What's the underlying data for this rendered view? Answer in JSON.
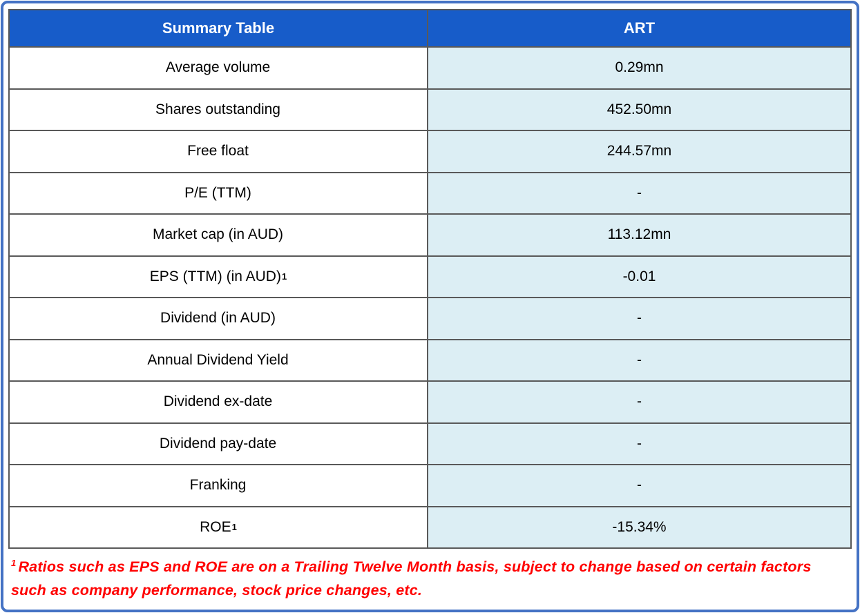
{
  "colors": {
    "header_bg": "#175CC9",
    "header_text": "#FFFFFF",
    "label_cell_bg": "#FFFFFF",
    "value_cell_bg": "#DCEEF4",
    "cell_border": "#595959",
    "frame_border": "#4472C4",
    "footnote_text": "#FF0000",
    "body_text": "#000000"
  },
  "table": {
    "header": {
      "label_col": "Summary Table",
      "value_col": "ART"
    },
    "rows": [
      {
        "label": "Average volume",
        "sup": "",
        "value": "0.29mn"
      },
      {
        "label": "Shares outstanding",
        "sup": "",
        "value": "452.50mn"
      },
      {
        "label": "Free float",
        "sup": "",
        "value": "244.57mn"
      },
      {
        "label": "P/E (TTM)",
        "sup": "",
        "value": "-"
      },
      {
        "label": "Market cap (in AUD)",
        "sup": "",
        "value": "113.12mn"
      },
      {
        "label": "EPS (TTM) (in AUD)",
        "sup": "1",
        "value": "-0.01"
      },
      {
        "label": "Dividend (in AUD)",
        "sup": "",
        "value": "-"
      },
      {
        "label": "Annual Dividend Yield",
        "sup": "",
        "value": "-"
      },
      {
        "label": "Dividend ex-date",
        "sup": "",
        "value": "-"
      },
      {
        "label": "Dividend pay-date",
        "sup": "",
        "value": "-"
      },
      {
        "label": "Franking",
        "sup": "",
        "value": "-"
      },
      {
        "label": "ROE",
        "sup": "1",
        "value": "-15.34%"
      }
    ]
  },
  "footnote": {
    "sup": "1",
    "text": "Ratios such as EPS and ROE are on a Trailing Twelve Month basis, subject to change based on certain factors such as company performance, stock price changes, etc."
  }
}
